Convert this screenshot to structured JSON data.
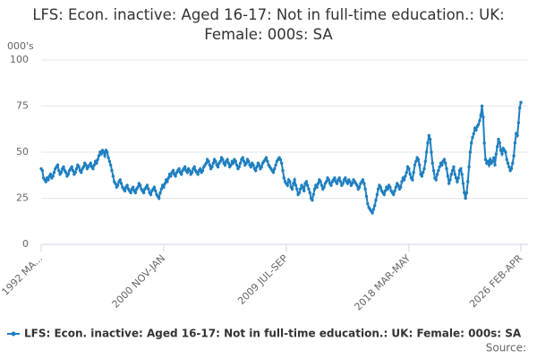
{
  "chart_data": {
    "type": "line",
    "title": "LFS: Econ. inactive: Aged 16-17: Not in full-time education.: UK: Female: 000s: SA",
    "y_unit": "000's",
    "source": "Source:",
    "ylim": [
      0,
      100
    ],
    "yticks": [
      0,
      25,
      50,
      75,
      100
    ],
    "grid": true,
    "categories": [
      "1992 MA...",
      null,
      null,
      null,
      null,
      null,
      null,
      null,
      null,
      null,
      null,
      null,
      null,
      null,
      null,
      null,
      null,
      null,
      null,
      null,
      null,
      null,
      null,
      null,
      null,
      null,
      null,
      null,
      null,
      null,
      null,
      null,
      null,
      null,
      null,
      null,
      null,
      null,
      null,
      null,
      null,
      null,
      null,
      null,
      null,
      null,
      null,
      null,
      null,
      null,
      null,
      null,
      null,
      null,
      null,
      null,
      null,
      null,
      null,
      null,
      null,
      null,
      null,
      null,
      null,
      null,
      null,
      null,
      null,
      null,
      null,
      null,
      null,
      null,
      null,
      null,
      null,
      null,
      null,
      null,
      null,
      null,
      null,
      null,
      null,
      null,
      null,
      null,
      null,
      null,
      null,
      null,
      null,
      null,
      null,
      null,
      null,
      null,
      null,
      null,
      null,
      null,
      null,
      null,
      "2000 NOV-JAN",
      null,
      null,
      null,
      null,
      null,
      null,
      null,
      null,
      null,
      null,
      null,
      null,
      null,
      null,
      null,
      null,
      null,
      null,
      null,
      null,
      null,
      null,
      null,
      null,
      null,
      null,
      null,
      null,
      null,
      null,
      null,
      null,
      null,
      null,
      null,
      null,
      null,
      null,
      null,
      null,
      null,
      null,
      null,
      null,
      null,
      null,
      null,
      null,
      null,
      null,
      null,
      null,
      null,
      null,
      null,
      null,
      null,
      null,
      null,
      null,
      null,
      null,
      null,
      null,
      null,
      null,
      null,
      null,
      null,
      null,
      null,
      null,
      null,
      null,
      null,
      null,
      null,
      null,
      null,
      null,
      null,
      null,
      null,
      null,
      null,
      null,
      null,
      null,
      null,
      null,
      null,
      null,
      null,
      null,
      null,
      null,
      null,
      null,
      null,
      null,
      null,
      null,
      null,
      "2009 JUL-SEP",
      null,
      null,
      null,
      null,
      null,
      null,
      null,
      null,
      null,
      null,
      null,
      null,
      null,
      null,
      null,
      null,
      null,
      null,
      null,
      null,
      null,
      null,
      null,
      null,
      null,
      null,
      null,
      null,
      null,
      null,
      null,
      null,
      null,
      null,
      null,
      null,
      null,
      null,
      null,
      null,
      null,
      null,
      null,
      null,
      null,
      null,
      null,
      null,
      null,
      null,
      null,
      null,
      null,
      null,
      null,
      null,
      null,
      null,
      null,
      null,
      null,
      null,
      null,
      null,
      null,
      null,
      null,
      null,
      null,
      null,
      null,
      null,
      null,
      null,
      null,
      null,
      null,
      null,
      null,
      null,
      null,
      null,
      null,
      null,
      null,
      null,
      null,
      null,
      null,
      null,
      null,
      null,
      null,
      null,
      null,
      null,
      null,
      null,
      null,
      null,
      null,
      null,
      null,
      "2018 MAR-MAY",
      null,
      null,
      null,
      null,
      null,
      null,
      null,
      null,
      null,
      null,
      null,
      null,
      null,
      null,
      null,
      null,
      null,
      null,
      null,
      null,
      null,
      null,
      null,
      null,
      null,
      null,
      null,
      null,
      null,
      null,
      null,
      null,
      null,
      null,
      null,
      null,
      null,
      null,
      null,
      null,
      null,
      null,
      null,
      null,
      null,
      null,
      null,
      null,
      null,
      null,
      null,
      null,
      null,
      null,
      null,
      null,
      null,
      null,
      null,
      null,
      null,
      null,
      null,
      null,
      null,
      null,
      null,
      null,
      null,
      null,
      null,
      null,
      null,
      null,
      null,
      null,
      null,
      null,
      null,
      null,
      null,
      null,
      null,
      null,
      null,
      null,
      null,
      null,
      null,
      null,
      null,
      null,
      null,
      null,
      "2026 FEB-APR"
    ],
    "series": [
      {
        "name": "LFS: Econ. inactive: Aged 16-17: Not in full-time education.: UK: Female: 000s: SA",
        "color": "#1f7fc0",
        "values": [
          41,
          40,
          36,
          35,
          34,
          36,
          35,
          37,
          38,
          36,
          37,
          39,
          41,
          42,
          43,
          40,
          38,
          39,
          41,
          42,
          40,
          39,
          37,
          38,
          40,
          41,
          42,
          40,
          38,
          39,
          41,
          43,
          42,
          40,
          39,
          41,
          42,
          44,
          43,
          41,
          42,
          43,
          44,
          42,
          41,
          43,
          45,
          44,
          46,
          48,
          50,
          49,
          51,
          50,
          48,
          51,
          50,
          47,
          45,
          43,
          40,
          37,
          34,
          33,
          31,
          32,
          34,
          35,
          33,
          31,
          30,
          29,
          31,
          32,
          30,
          29,
          28,
          30,
          31,
          29,
          28,
          30,
          31,
          33,
          32,
          30,
          29,
          28,
          30,
          31,
          32,
          30,
          28,
          27,
          29,
          30,
          31,
          29,
          27,
          26,
          25,
          28,
          30,
          32,
          31,
          33,
          35,
          34,
          36,
          38,
          37,
          39,
          40,
          38,
          37,
          39,
          40,
          41,
          39,
          38,
          40,
          41,
          42,
          40,
          39,
          41,
          40,
          38,
          39,
          41,
          42,
          40,
          39,
          38,
          40,
          41,
          39,
          40,
          42,
          43,
          44,
          46,
          45,
          43,
          41,
          42,
          44,
          46,
          45,
          43,
          42,
          44,
          45,
          47,
          46,
          44,
          43,
          45,
          46,
          44,
          42,
          43,
          45,
          44,
          46,
          45,
          43,
          41,
          42,
          44,
          46,
          47,
          45,
          43,
          44,
          46,
          45,
          43,
          42,
          44,
          43,
          41,
          40,
          42,
          44,
          43,
          41,
          42,
          44,
          45,
          46,
          47,
          45,
          43,
          42,
          41,
          40,
          39,
          41,
          43,
          45,
          46,
          47,
          46,
          44,
          40,
          36,
          34,
          33,
          32,
          35,
          34,
          31,
          30,
          33,
          35,
          32,
          30,
          27,
          28,
          30,
          32,
          31,
          29,
          33,
          34,
          32,
          30,
          28,
          25,
          24,
          27,
          30,
          32,
          31,
          33,
          35,
          34,
          32,
          30,
          31,
          33,
          34,
          36,
          35,
          33,
          32,
          34,
          35,
          36,
          34,
          33,
          35,
          36,
          34,
          32,
          33,
          35,
          36,
          34,
          33,
          35,
          34,
          32,
          33,
          35,
          34,
          33,
          32,
          30,
          31,
          33,
          34,
          35,
          33,
          30,
          26,
          22,
          20,
          19,
          18,
          17,
          19,
          21,
          24,
          27,
          30,
          32,
          31,
          29,
          28,
          27,
          29,
          31,
          30,
          32,
          31,
          29,
          28,
          27,
          29,
          31,
          33,
          32,
          30,
          31,
          34,
          36,
          35,
          37,
          39,
          42,
          41,
          38,
          36,
          35,
          39,
          43,
          45,
          47,
          46,
          43,
          38,
          37,
          39,
          41,
          45,
          50,
          55,
          59,
          57,
          50,
          44,
          40,
          36,
          35,
          38,
          40,
          42,
          44,
          43,
          45,
          46,
          44,
          41,
          37,
          33,
          35,
          38,
          40,
          42,
          38,
          36,
          34,
          36,
          40,
          41,
          38,
          33,
          28,
          25,
          28,
          34,
          42,
          50,
          55,
          58,
          60,
          63,
          62,
          64,
          65,
          67,
          70,
          75,
          69,
          55,
          46,
          44,
          45,
          43,
          46,
          44,
          45,
          47,
          43,
          49,
          53,
          57,
          55,
          51,
          49,
          52,
          51,
          50,
          46,
          44,
          42,
          40,
          41,
          44,
          48,
          55,
          60,
          59,
          66,
          74,
          77
        ]
      }
    ]
  }
}
